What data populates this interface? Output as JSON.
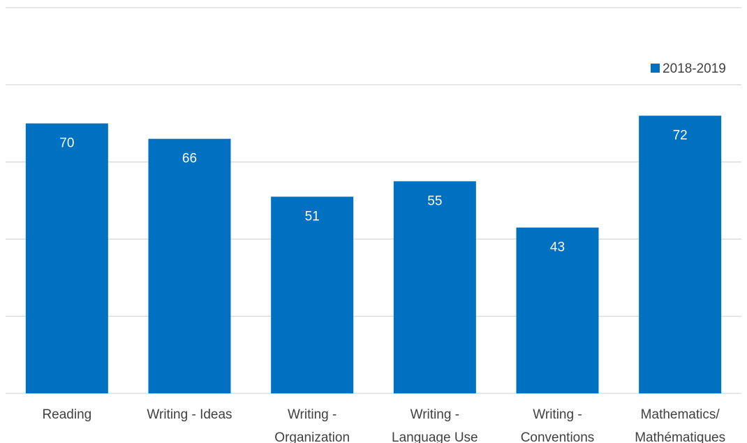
{
  "chart_data": {
    "type": "bar",
    "title": "",
    "xlabel": "",
    "ylabel": "",
    "categories": [
      [
        "Reading"
      ],
      [
        "Writing - Ideas"
      ],
      [
        "Writing -",
        "Organization"
      ],
      [
        "Writing -",
        "Language Use"
      ],
      [
        "Writing -",
        "Conventions"
      ],
      [
        "Mathematics/",
        "Mathématiques"
      ]
    ],
    "series": [
      {
        "name": "2018-2019",
        "values": [
          70,
          66,
          51,
          55,
          43,
          72
        ]
      }
    ],
    "ylim": [
      0,
      100
    ],
    "gridlines": [
      0,
      20,
      40,
      60,
      80,
      100
    ],
    "grid": true,
    "legend_position": "top-right",
    "data_labels": "inside-end",
    "colors": {
      "bar": "#0070C0",
      "grid": "#D9D9D9",
      "text": "#404040",
      "data_label": "#FFFFFF"
    }
  }
}
